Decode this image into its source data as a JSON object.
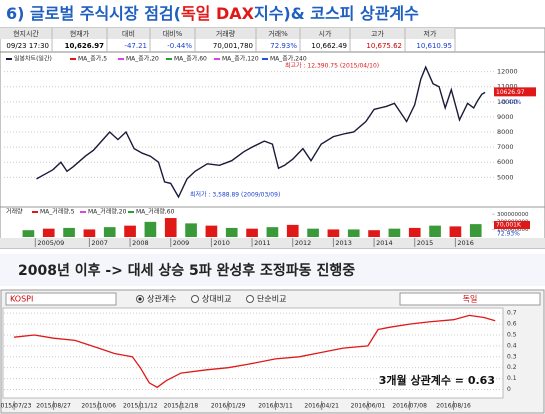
{
  "title": {
    "prefix": "6) 글로벌 주식시장 점검(",
    "highlight": "독일 DAX",
    "suffix": "지수)& 코스피 상관계수"
  },
  "quote": {
    "headers": [
      "현지시간",
      "현재가",
      "대비",
      "대비%",
      "거래량",
      "거래%",
      "시가",
      "고가",
      "저가"
    ],
    "values": [
      "09/23  17:30",
      "10,626.97",
      "-47.21",
      "-0.44%",
      "70,001,780",
      "72.93%",
      "10,662.49",
      "10,675.62",
      "10,610.95"
    ]
  },
  "subtitle": "2008년 이후 -> 대세 상승 5파 완성후 조정파동 진행중",
  "toolbar": {
    "symbol": "KOSPI",
    "options": [
      "상관계수",
      "상대비교",
      "단순비교"
    ],
    "compare": "독일"
  },
  "chart_data": [
    {
      "type": "line",
      "ma_legend": [
        "MA_종가,5",
        "MA_종가,20",
        "MA_종가,60",
        "MA_종가,120",
        "MA_종가,240"
      ],
      "x": [
        2005.7,
        2005.9,
        2006.1,
        2006.3,
        2006.45,
        2006.6,
        2006.9,
        2007.1,
        2007.3,
        2007.5,
        2007.7,
        2007.9,
        2008.1,
        2008.3,
        2008.5,
        2008.7,
        2008.85,
        2009.0,
        2009.19,
        2009.4,
        2009.6,
        2009.9,
        2010.2,
        2010.5,
        2010.8,
        2011.0,
        2011.3,
        2011.5,
        2011.65,
        2011.8,
        2012.0,
        2012.25,
        2012.45,
        2012.7,
        2013.0,
        2013.3,
        2013.5,
        2013.8,
        2014.0,
        2014.3,
        2014.5,
        2014.8,
        2015.0,
        2015.15,
        2015.27,
        2015.45,
        2015.6,
        2015.75,
        2015.9,
        2016.1,
        2016.3,
        2016.45,
        2016.55,
        2016.65,
        2016.73
      ],
      "series": [
        {
          "name": "일봉차트(일간)",
          "color": "#1a1a3a",
          "values": [
            4900,
            5200,
            5500,
            6000,
            5400,
            5700,
            6400,
            6800,
            7400,
            8000,
            7500,
            8000,
            6900,
            6600,
            6400,
            6000,
            4700,
            4600,
            3700,
            4900,
            5400,
            5900,
            5800,
            6100,
            6700,
            7000,
            7400,
            7200,
            5600,
            5800,
            6200,
            6900,
            6100,
            7200,
            7700,
            7900,
            8000,
            8700,
            9500,
            9700,
            9900,
            8700,
            9800,
            11500,
            12300,
            11200,
            11000,
            9600,
            10800,
            8800,
            9900,
            9600,
            10100,
            10500,
            10627
          ]
        }
      ],
      "xlim": [
        2004.9,
        2016.9
      ],
      "xticks": [
        {
          "value": 2005.67,
          "label": "2005/09"
        },
        2007,
        2008,
        2009,
        2010,
        2011,
        2012,
        2013,
        2014,
        2015,
        2016
      ],
      "ylim": [
        3500,
        13100
      ],
      "yticks": [
        5000,
        6000,
        7000,
        8000,
        9000,
        10000,
        11000,
        12000
      ],
      "grid": true,
      "annotations": [
        "최고가 : 12,390.75 (2015/04/10)",
        "최저가 : 3,588.89 (2009/03/09)"
      ],
      "last_label": "10626.97",
      "change_label": "-0.44%"
    },
    {
      "type": "bar",
      "title": "거래량",
      "ma_legend": [
        "MA_거래량,5",
        "MA_거래량,20",
        "MA_거래량,60"
      ],
      "x": [
        2005.5,
        2006.0,
        2006.5,
        2007.0,
        2007.5,
        2008.0,
        2008.5,
        2009.0,
        2009.5,
        2010.0,
        2010.5,
        2011.0,
        2011.5,
        2012.0,
        2012.5,
        2013.0,
        2013.5,
        2014.0,
        2014.5,
        2015.0,
        2015.5,
        2016.0,
        2016.5
      ],
      "values": [
        90000000,
        110000000,
        120000000,
        100000000,
        130000000,
        150000000,
        200000000,
        250000000,
        180000000,
        150000000,
        120000000,
        110000000,
        130000000,
        160000000,
        110000000,
        100000000,
        100000000,
        90000000,
        110000000,
        120000000,
        150000000,
        140000000,
        170000000
      ],
      "color": "#3a9a3a",
      "ylim": [
        0,
        330000000
      ],
      "yticks": [
        100000000,
        200000000,
        300000000
      ],
      "last_label": "70,001K",
      "pct_label": "72.93%"
    },
    {
      "type": "line",
      "annotation": "3개월 상관계수 = 0.63",
      "x": [
        "2015/07/23",
        "2015/08/10",
        "2015/08/27",
        "2015/09/15",
        "2015/10/06",
        "2015/10/20",
        "2015/11/05",
        "2015/11/12",
        "2015/11/20",
        "2015/11/27",
        "2015/12/05",
        "2015/12/18",
        "2016/01/10",
        "2016/01/29",
        "2016/02/15",
        "2016/03/11",
        "2016/04/01",
        "2016/04/21",
        "2016/05/10",
        "2016/06/01",
        "2016/06/10",
        "2016/06/20",
        "2016/07/08",
        "2016/07/25",
        "2016/08/16",
        "2016/08/30",
        "2016/09/12",
        "2016/09/22"
      ],
      "values": [
        0.48,
        0.5,
        0.47,
        0.45,
        0.38,
        0.33,
        0.3,
        0.2,
        0.06,
        0.02,
        0.08,
        0.15,
        0.18,
        0.2,
        0.23,
        0.28,
        0.3,
        0.34,
        0.38,
        0.4,
        0.55,
        0.57,
        0.6,
        0.62,
        0.64,
        0.68,
        0.66,
        0.63
      ],
      "color": "#e01818",
      "xlim": [
        "2015/07/14",
        "2016/09/28"
      ],
      "xticks": [
        "2015/07/23",
        "2015/08/27",
        "2015/10/06",
        "2015/11/12",
        "2015/12/18",
        "2016/01/29",
        "2016/03/11",
        "2016/04/21",
        "2016/06/01",
        "2016/07/08",
        "2016/08/16"
      ],
      "ylim": [
        -0.06,
        0.72
      ],
      "yticks": [
        0,
        0.1,
        0.2,
        0.3,
        0.4,
        0.5,
        0.6,
        0.7
      ],
      "grid": true
    }
  ]
}
